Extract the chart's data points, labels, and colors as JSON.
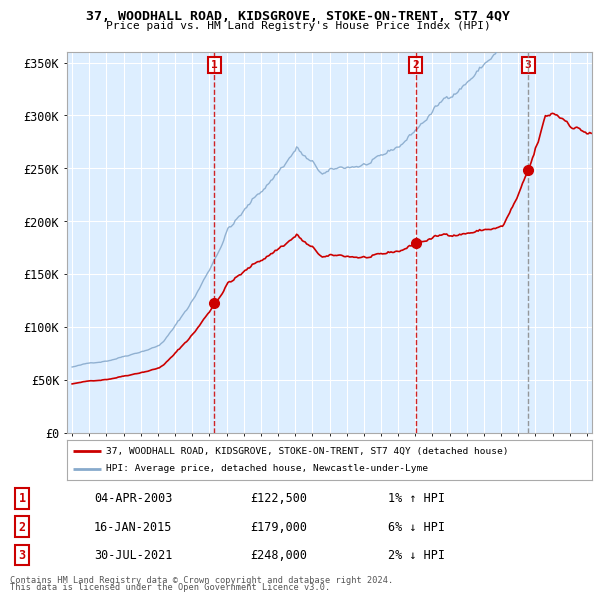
{
  "title": "37, WOODHALL ROAD, KIDSGROVE, STOKE-ON-TRENT, ST7 4QY",
  "subtitle": "Price paid vs. HM Land Registry's House Price Index (HPI)",
  "ylabel_ticks": [
    "£0",
    "£50K",
    "£100K",
    "£150K",
    "£200K",
    "£250K",
    "£300K",
    "£350K"
  ],
  "ytick_values": [
    0,
    50000,
    100000,
    150000,
    200000,
    250000,
    300000,
    350000
  ],
  "ylim": [
    0,
    360000
  ],
  "xlim_start": 1994.7,
  "xlim_end": 2025.3,
  "sales": [
    {
      "num": 1,
      "date": "04-APR-2003",
      "price": 122500,
      "year": 2003.27,
      "hpi_pct": "1%",
      "hpi_dir": "↑"
    },
    {
      "num": 2,
      "date": "16-JAN-2015",
      "price": 179000,
      "year": 2015.04,
      "hpi_pct": "6%",
      "hpi_dir": "↓"
    },
    {
      "num": 3,
      "date": "30-JUL-2021",
      "price": 248000,
      "year": 2021.58,
      "hpi_pct": "2%",
      "hpi_dir": "↓"
    }
  ],
  "legend_label_red": "37, WOODHALL ROAD, KIDSGROVE, STOKE-ON-TRENT, ST7 4QY (detached house)",
  "legend_label_blue": "HPI: Average price, detached house, Newcastle-under-Lyme",
  "footer1": "Contains HM Land Registry data © Crown copyright and database right 2024.",
  "footer2": "This data is licensed under the Open Government Licence v3.0.",
  "line_color_red": "#cc0000",
  "line_color_blue": "#88aacc",
  "marker_box_color": "#cc0000",
  "sale1_line_color": "#cc0000",
  "sale2_line_color": "#cc0000",
  "sale3_line_color": "#888888",
  "bg_color": "#ffffff",
  "plot_bg_color": "#ddeeff",
  "grid_color": "#ffffff"
}
